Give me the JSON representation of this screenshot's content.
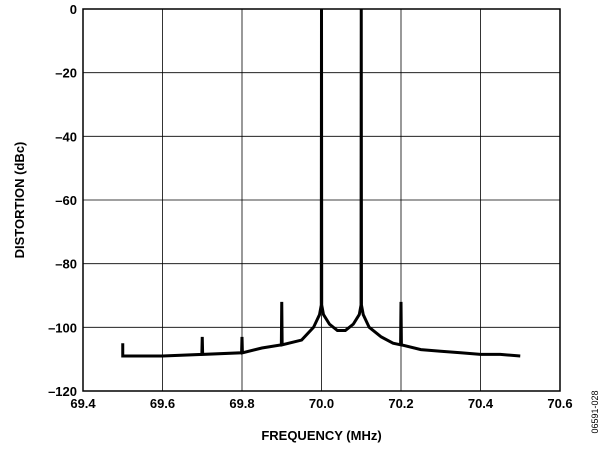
{
  "chart_data": {
    "type": "line",
    "xlabel": "FREQUENCY (MHz)",
    "ylabel": "DISTORTION (dBc)",
    "xlim": [
      69.4,
      70.6
    ],
    "ylim": [
      -120,
      0
    ],
    "x_ticks": [
      69.4,
      69.6,
      69.8,
      70.0,
      70.2,
      70.4,
      70.6
    ],
    "x_tick_labels": [
      "69.4",
      "69.6",
      "69.8",
      "70.0",
      "70.2",
      "70.4",
      "70.6"
    ],
    "y_ticks": [
      0,
      -20,
      -40,
      -60,
      -80,
      -100,
      -120
    ],
    "y_tick_labels": [
      "0",
      "–20",
      "–40",
      "–60",
      "–80",
      "–100",
      "–120"
    ],
    "grid": true,
    "legend": "none",
    "figure_id": "06591-028",
    "series": [
      {
        "color": "#000000",
        "x": [
          69.5,
          69.5,
          69.502,
          69.6,
          69.699,
          69.7,
          69.701,
          69.799,
          69.8,
          69.801,
          69.85,
          69.899,
          69.9,
          69.901,
          69.95,
          69.98,
          69.995,
          69.9995,
          70.0,
          70.0005,
          70.005,
          70.02,
          70.04,
          70.05,
          70.06,
          70.08,
          70.095,
          70.0995,
          70.1,
          70.1005,
          70.105,
          70.12,
          70.15,
          70.18,
          70.199,
          70.2,
          70.201,
          70.25,
          70.3,
          70.35,
          70.4,
          70.45,
          70.5
        ],
        "y": [
          -105,
          -109,
          -109,
          -109,
          -108.5,
          -103,
          -108.5,
          -108,
          -103,
          -108,
          -106.5,
          -105.5,
          -92,
          -105.5,
          -104,
          -100,
          -96,
          -93,
          0,
          -93,
          -96,
          -99,
          -101,
          -101,
          -101,
          -99,
          -96,
          -93,
          0,
          -93,
          -96,
          -100,
          -103,
          -105,
          -105.5,
          -92,
          -105.5,
          -107,
          -107.5,
          -108,
          -108.5,
          -108.5,
          -109
        ]
      }
    ]
  }
}
